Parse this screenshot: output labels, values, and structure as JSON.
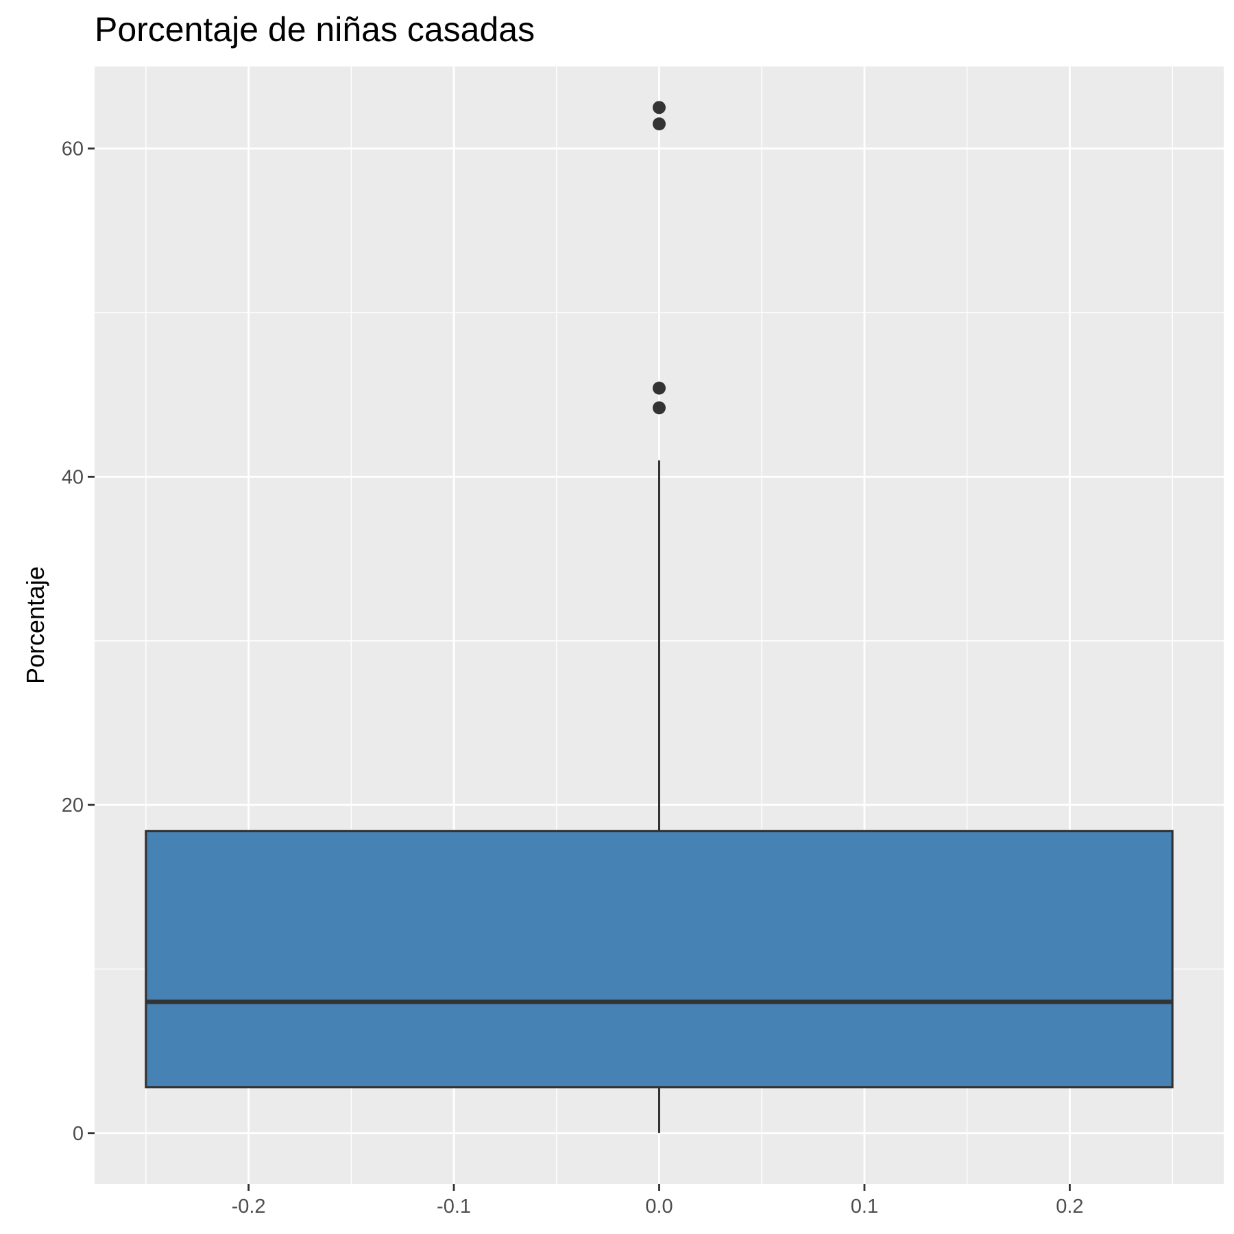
{
  "chart_data": {
    "type": "boxplot",
    "title": "Porcentaje de niñas casadas",
    "xlabel": "",
    "ylabel": "Porcentaje",
    "xlim": [
      -0.275,
      0.275
    ],
    "ylim": [
      -3.1,
      65.0
    ],
    "x_ticks": [
      -0.2,
      -0.1,
      0.0,
      0.1,
      0.2
    ],
    "x_tick_labels": [
      "-0.2",
      "-0.1",
      "0.0",
      "0.1",
      "0.2"
    ],
    "y_ticks": [
      0,
      20,
      40,
      60
    ],
    "y_tick_labels": [
      "0",
      "20",
      "40",
      "60"
    ],
    "grid": true,
    "box": {
      "x": 0.0,
      "x_min": -0.25,
      "x_max": 0.25,
      "q1": 2.8,
      "median": 8.0,
      "q3": 18.4,
      "whisker_low": 0.0,
      "whisker_high": 41.0,
      "fill": "#4682B4",
      "outline": "#333333"
    },
    "outliers": [
      {
        "x": 0.0,
        "y": 62.5
      },
      {
        "x": 0.0,
        "y": 61.5
      },
      {
        "x": 0.0,
        "y": 45.4
      },
      {
        "x": 0.0,
        "y": 44.2
      }
    ],
    "colors": {
      "panel_background": "#EBEBEB",
      "grid": "#FFFFFF",
      "point": "#333333"
    }
  }
}
